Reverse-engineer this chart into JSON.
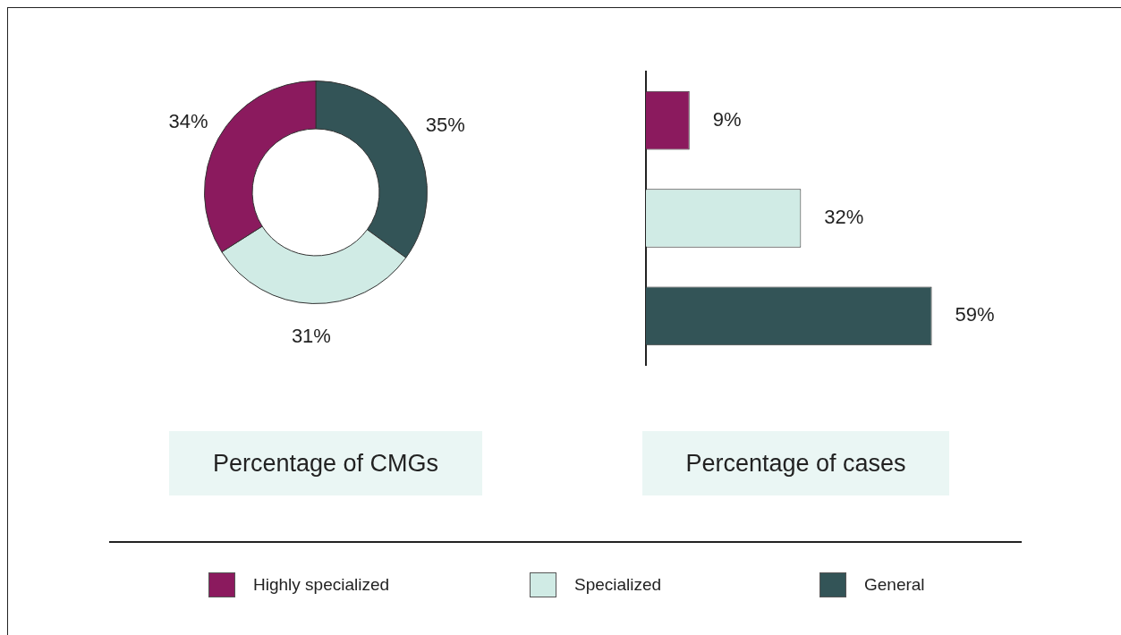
{
  "chart_data": [
    {
      "type": "donut",
      "title": "Percentage of CMGs",
      "categories": [
        "General",
        "Specialized",
        "Highly specialized"
      ],
      "values": [
        35,
        31,
        34
      ],
      "value_labels": [
        "35%",
        "31%",
        "34%"
      ],
      "colors": [
        "#335457",
        "#d0ebe5",
        "#8b1a5e"
      ],
      "legend": "bottom"
    },
    {
      "type": "bar",
      "orientation": "horizontal",
      "title": "Percentage of cases",
      "categories": [
        null,
        null,
        null
      ],
      "values": [
        9,
        32,
        59
      ],
      "value_labels": [
        "9%",
        "32%",
        "59%"
      ],
      "colors": [
        "#8b1a5e",
        "#d0ebe5",
        "#335457"
      ],
      "legend": false
    }
  ]
}
